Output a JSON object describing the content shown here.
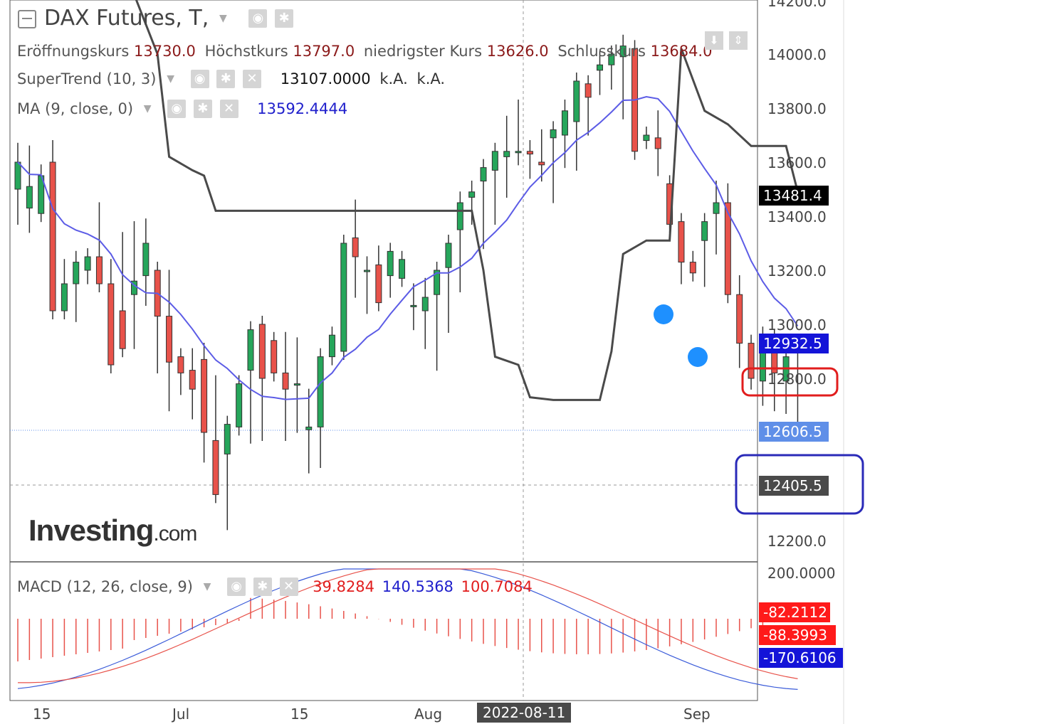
{
  "header": {
    "symbol": "DAX Futures, T,",
    "ohlc_labels": {
      "open_label": "Eröffnungskurs",
      "open": "13730.0",
      "high_label": "Höchstkurs",
      "high": "13797.0",
      "low_label": "niedrigster Kurs",
      "low": "13626.0",
      "close_label": "Schlusskurs",
      "close": "13684.0"
    }
  },
  "indicators": {
    "supertrend": {
      "name": "SuperTrend (10, 3)",
      "value": "13107.0000",
      "na1": "k.A.",
      "na2": "k.A."
    },
    "ma": {
      "name": "MA (9, close, 0)",
      "value": "13592.4444"
    },
    "macd": {
      "name": "MACD (12, 26, close, 9)",
      "v1": "39.8284",
      "v2": "140.5368",
      "v3": "100.7084"
    }
  },
  "price_axis": {
    "ticks": [
      "14200.0",
      "14000.0",
      "13800.0",
      "13600.0",
      "13400.0",
      "13200.0",
      "13000.0",
      "12800.0",
      "12200.0"
    ],
    "labels": {
      "supertrend_last": "13481.4",
      "ma_last": "12932.5",
      "current": "12606.5",
      "crosshair": "12405.5"
    }
  },
  "macd_axis": {
    "top": "200.0000",
    "labels": {
      "signal": "-82.2112",
      "hist": "-88.3993",
      "macd": "-170.6106"
    }
  },
  "time_axis": {
    "labels": [
      "15",
      "Jul",
      "15",
      "Aug",
      "Sep"
    ],
    "crosshair_date": "2022-08-11"
  },
  "logo": {
    "main": "Investing",
    "suffix": ".com"
  },
  "colors": {
    "up": "#26a65b",
    "down": "#e8524a",
    "ma": "#5c5ce6",
    "supertrend": "#4a4a4a",
    "macd_line": "#3a5bd9",
    "signal_line": "#e8524a",
    "highlight_red": "#e11d1d",
    "highlight_blue": "#2a2ab8"
  },
  "chart_data": {
    "type": "candlestick",
    "candles": [
      [
        13500,
        13640,
        13400,
        13600
      ],
      [
        13430,
        13630,
        13370,
        13510
      ],
      [
        13410,
        13560,
        13410,
        13550
      ],
      [
        13600,
        13650,
        13130,
        13050
      ],
      [
        13050,
        13210,
        13080,
        13150
      ],
      [
        13150,
        13240,
        13040,
        13230
      ],
      [
        13200,
        13230,
        13180,
        13250
      ],
      [
        13250,
        13420,
        13210,
        13150
      ],
      [
        13150,
        13210,
        12940,
        12850
      ],
      [
        13050,
        13310,
        13000,
        12910
      ],
      [
        13110,
        13350,
        12940,
        13160
      ],
      [
        13180,
        13360,
        13100,
        13300
      ],
      [
        13200,
        12950,
        12850,
        13030
      ],
      [
        13030,
        13170,
        12710,
        12860
      ],
      [
        12880,
        12860,
        12770,
        12820
      ],
      [
        12830,
        12880,
        12680,
        12760
      ],
      [
        12870,
        12900,
        12520,
        12600
      ],
      [
        12570,
        12780,
        12370,
        12370
      ],
      [
        12520,
        12610,
        12270,
        12630
      ],
      [
        12620,
        12680,
        12880,
        12780
      ],
      [
        12830,
        12950,
        12590,
        12980
      ],
      [
        13000,
        12950,
        12600,
        12800
      ],
      [
        12940,
        12800,
        12890,
        12820
      ],
      [
        12820,
        12940,
        12600,
        12760
      ],
      [
        12780,
        12920,
        12630,
        12780
      ],
      [
        12610,
        12730,
        12480,
        12620
      ],
      [
        12620,
        12840,
        12500,
        12880
      ],
      [
        12880,
        12840,
        12960,
        12960
      ],
      [
        12900,
        13060,
        12960,
        13300
      ],
      [
        13320,
        13430,
        13130,
        13250
      ],
      [
        13200,
        13220,
        13070,
        13200
      ],
      [
        13220,
        13260,
        13240,
        13080
      ],
      [
        13180,
        13190,
        13130,
        13270
      ],
      [
        13170,
        13150,
        13170,
        13240
      ],
      [
        13070,
        13120,
        13010,
        13070
      ],
      [
        13050,
        13140,
        12940,
        13100
      ],
      [
        13110,
        13150,
        12860,
        13200
      ],
      [
        13210,
        13300,
        13000,
        13300
      ],
      [
        13350,
        13460,
        13150,
        13450
      ],
      [
        13470,
        13500,
        13400,
        13490
      ],
      [
        13530,
        13550,
        13310,
        13580
      ],
      [
        13570,
        13610,
        13400,
        13640
      ],
      [
        13620,
        13740,
        13500,
        13640
      ],
      [
        13640,
        13800,
        13620,
        13640
      ],
      [
        13640,
        13650,
        13570,
        13630
      ],
      [
        13600,
        13690,
        13560,
        13590
      ],
      [
        13690,
        13710,
        13480,
        13720
      ],
      [
        13700,
        13800,
        13610,
        13790
      ],
      [
        13750,
        13820,
        13600,
        13900
      ],
      [
        13890,
        13850,
        13730,
        13840
      ],
      [
        13940,
        13980,
        13880,
        13960
      ],
      [
        13960,
        13990,
        13900,
        14000
      ],
      [
        13990,
        14040,
        13790,
        14030
      ],
      [
        14020,
        14000,
        13690,
        13640
      ],
      [
        13680,
        13650,
        13790,
        13700
      ],
      [
        13690,
        13760,
        13580,
        13650
      ],
      [
        13520,
        13520,
        13420,
        13370
      ],
      [
        13380,
        13260,
        13180,
        13230
      ],
      [
        13230,
        13240,
        13300,
        13190
      ],
      [
        13310,
        13350,
        13170,
        13380
      ],
      [
        13410,
        13500,
        13290,
        13450
      ],
      [
        13450,
        13490,
        13260,
        13110
      ],
      [
        13110,
        13150,
        12870,
        12930
      ],
      [
        12930,
        12890,
        12790,
        12800
      ],
      [
        12790,
        12950,
        12730,
        12960
      ],
      [
        12950,
        12800,
        12710,
        12820
      ],
      [
        12790,
        12860,
        12700,
        12880
      ],
      [
        12620,
        12920,
        12610,
        12610
      ]
    ],
    "ma_name": "MA (9, close, 0)",
    "supertrend_name": "SuperTrend (10, 3)"
  }
}
